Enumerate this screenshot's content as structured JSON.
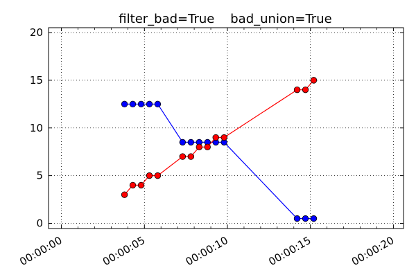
{
  "chart_data": {
    "type": "line",
    "title": "filter_bad=True    bad_union=True",
    "xlabel": "",
    "ylabel": "",
    "x_unit": "time (hh:mm:ss)",
    "xlim": [
      "00:00:00",
      "00:00:20"
    ],
    "ylim": [
      0,
      20
    ],
    "x_ticks": [
      "00:00:00",
      "00:00:05",
      "00:00:10",
      "00:00:15",
      "00:00:20"
    ],
    "y_ticks": [
      0,
      5,
      10,
      15,
      20
    ],
    "grid": true,
    "legend": "none",
    "series": [
      {
        "color": "#0000ff",
        "marker": "circle",
        "x": [
          "00:00:03.8",
          "00:00:04.3",
          "00:00:04.8",
          "00:00:05.3",
          "00:00:05.8",
          "00:00:07.3",
          "00:00:07.8",
          "00:00:08.3",
          "00:00:08.8",
          "00:00:09.3",
          "00:00:09.8",
          "00:00:14.2",
          "00:00:14.7",
          "00:00:15.2"
        ],
        "y": [
          12.5,
          12.5,
          12.5,
          12.5,
          12.5,
          8.5,
          8.5,
          8.5,
          8.5,
          8.5,
          8.5,
          0.5,
          0.5,
          0.5
        ]
      },
      {
        "color": "#ff0000",
        "marker": "circle",
        "x": [
          "00:00:03.8",
          "00:00:04.3",
          "00:00:04.8",
          "00:00:05.3",
          "00:00:05.8",
          "00:00:07.3",
          "00:00:07.8",
          "00:00:08.3",
          "00:00:08.8",
          "00:00:09.3",
          "00:00:09.8",
          "00:00:14.2",
          "00:00:14.7",
          "00:00:15.2"
        ],
        "y": [
          3,
          4,
          4,
          5,
          5,
          7,
          7,
          8,
          8,
          9,
          9,
          14,
          14,
          15
        ]
      }
    ]
  }
}
